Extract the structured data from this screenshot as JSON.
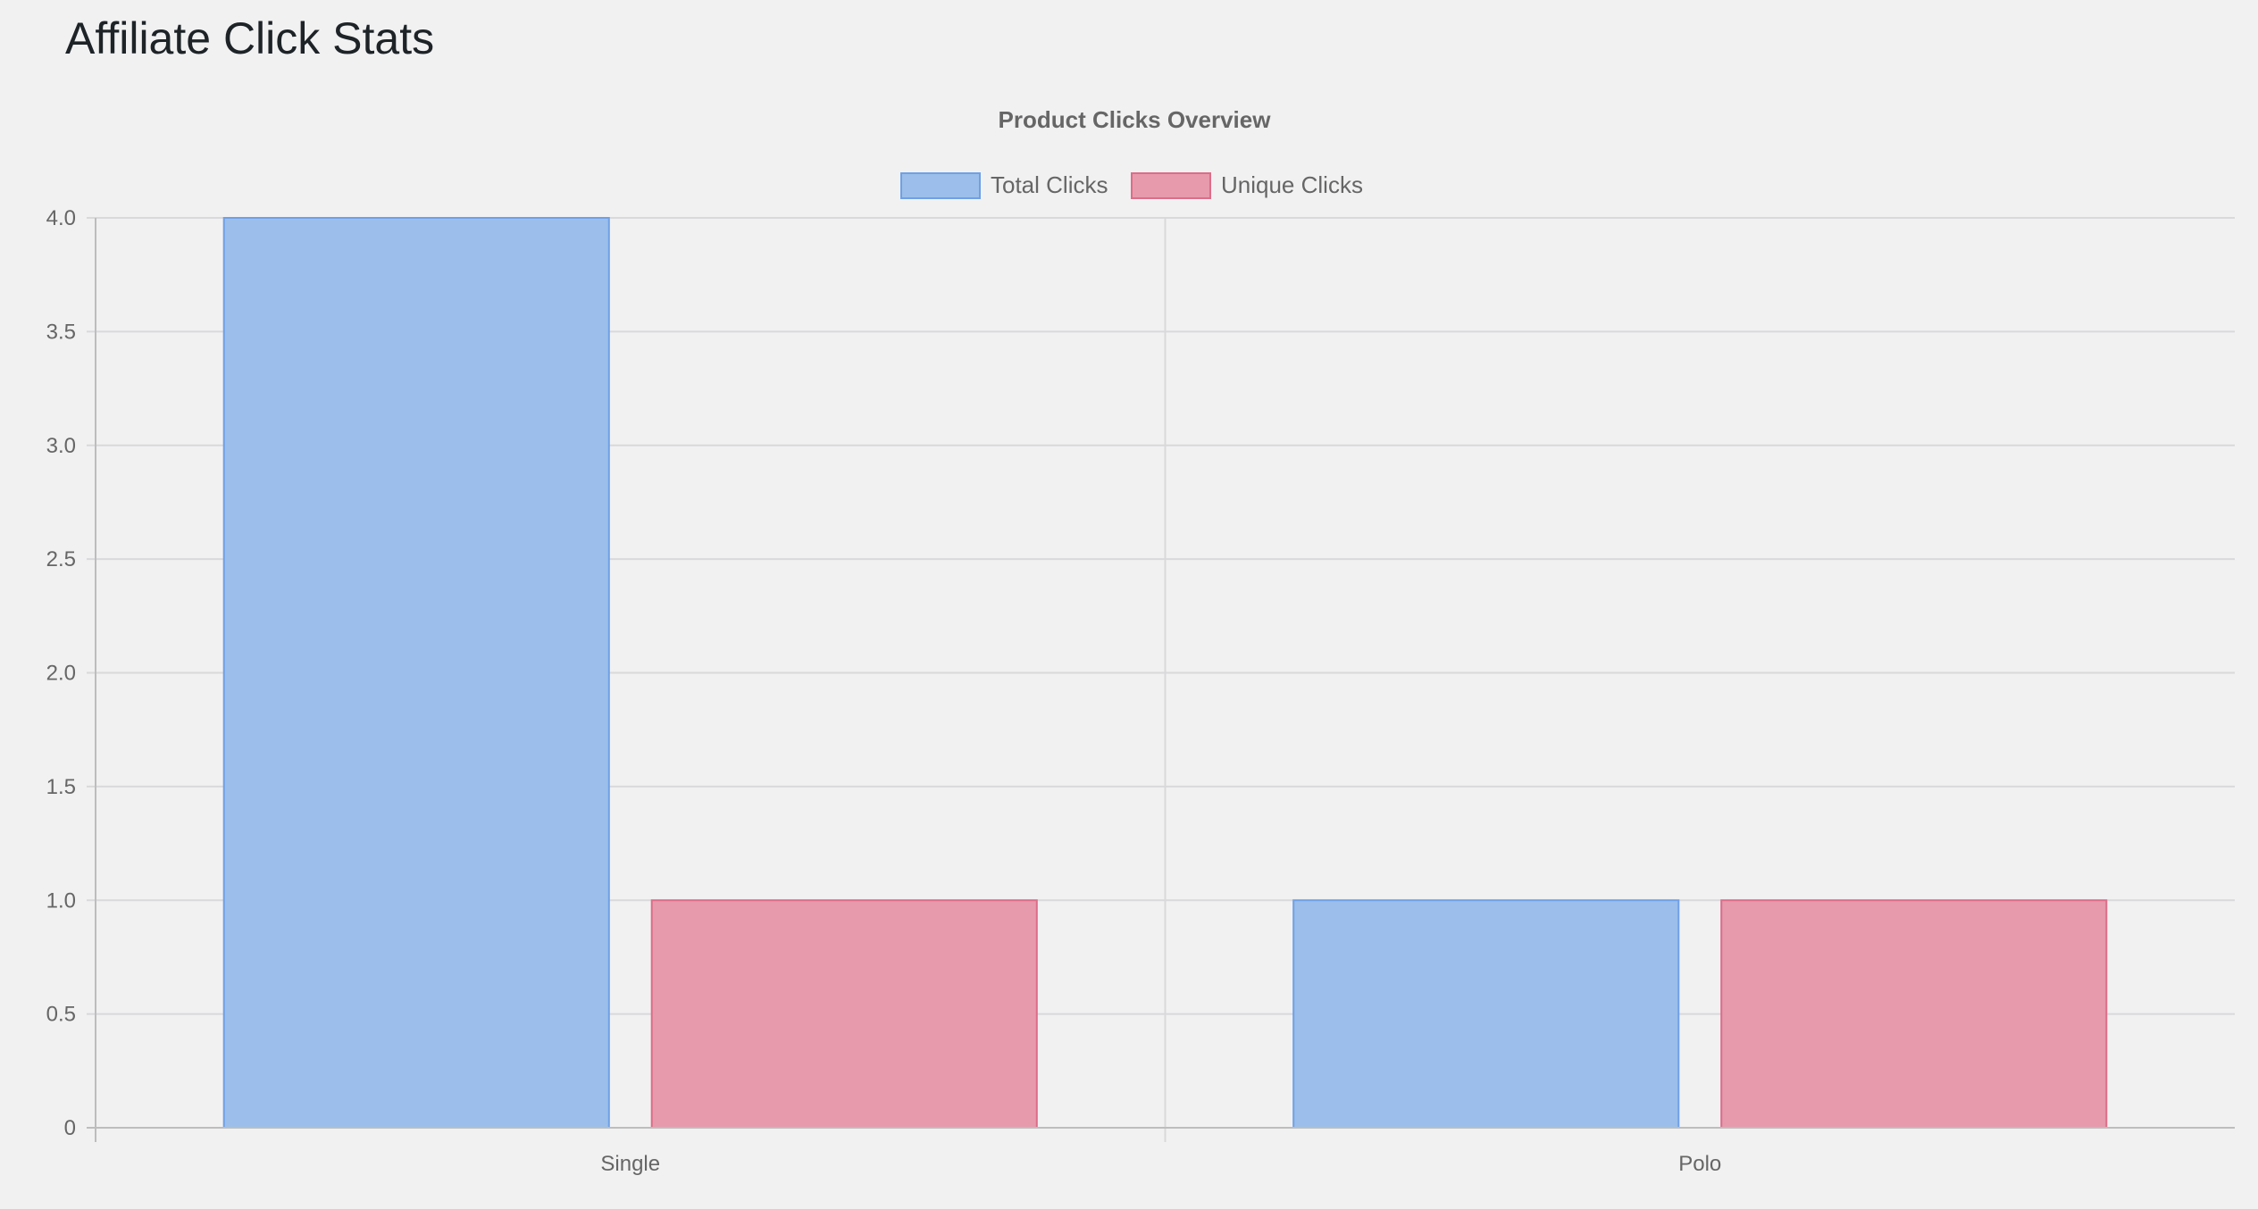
{
  "page": {
    "title": "Affiliate Click Stats"
  },
  "chart_data": {
    "type": "bar",
    "title": "Product Clicks Overview",
    "categories": [
      "Single",
      "Polo"
    ],
    "series": [
      {
        "name": "Total Clicks",
        "values": [
          4,
          1
        ],
        "color": "#9bbfea",
        "border": "#6fa0e6"
      },
      {
        "name": "Unique Clicks",
        "values": [
          1,
          1
        ],
        "color": "#e79aac",
        "border": "#dc6d88"
      }
    ],
    "xlabel": "",
    "ylabel": "",
    "ylim": [
      0,
      4
    ],
    "yticks": [
      "0",
      "0.5",
      "1.0",
      "1.5",
      "2.0",
      "2.5",
      "3.0",
      "3.5",
      "4.0"
    ],
    "grid": true,
    "legend_position": "top"
  }
}
